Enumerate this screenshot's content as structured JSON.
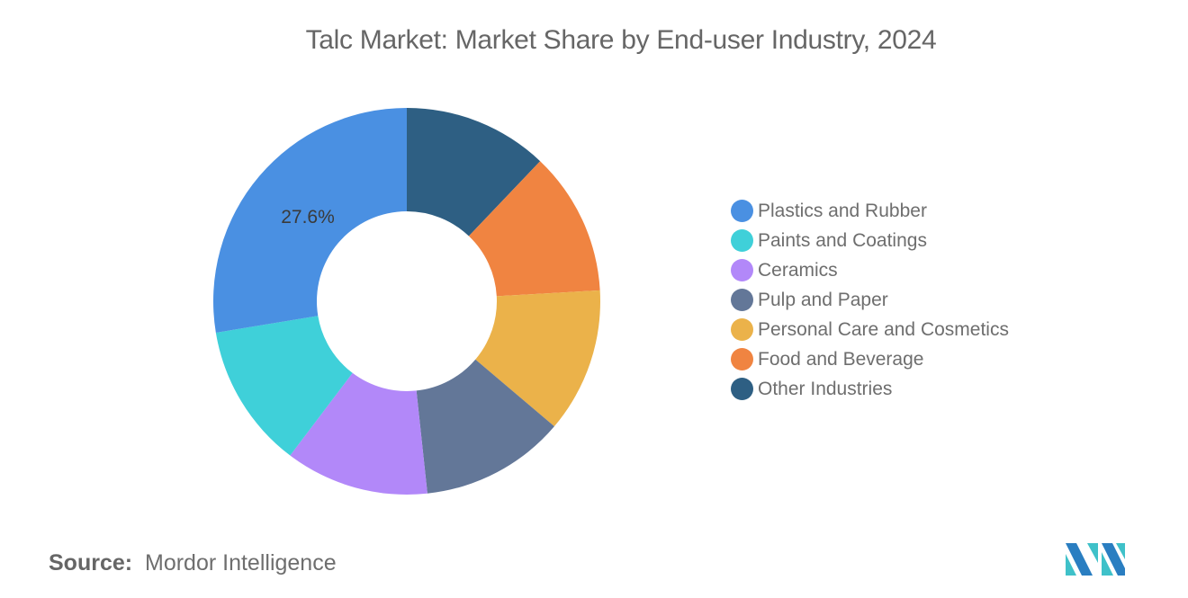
{
  "title": "Talc Market: Market Share by End-user Industry, 2024",
  "source_label": "Source:",
  "source_value": "Mordor Intelligence",
  "chart_data": {
    "type": "pie",
    "subtype": "donut",
    "title": "Talc Market: Market Share by End-user Industry, 2024",
    "start_angle": "12 o'clock, clockwise",
    "slices_in_draw_order": [
      {
        "label": "Other Industries",
        "value": 12.1,
        "color": "#2e5f83"
      },
      {
        "label": "Food and Beverage",
        "value": 12.0,
        "color": "#f08441"
      },
      {
        "label": "Personal Care and Cosmetics",
        "value": 12.1,
        "color": "#ebb24a"
      },
      {
        "label": "Pulp and Paper",
        "value": 12.1,
        "color": "#637798"
      },
      {
        "label": "Ceramics",
        "value": 12.0,
        "color": "#b288f9"
      },
      {
        "label": "Paints and Coatings",
        "value": 12.1,
        "color": "#3fd0d9"
      },
      {
        "label": "Plastics and Rubber",
        "value": 27.6,
        "color": "#4a90e2"
      }
    ],
    "data_labels": [
      {
        "label": "Plastics and Rubber",
        "text": "27.6%"
      }
    ],
    "legend": {
      "position": "right",
      "entries": [
        {
          "label": "Plastics and Rubber",
          "color": "#4a90e2"
        },
        {
          "label": "Paints and Coatings",
          "color": "#3fd0d9"
        },
        {
          "label": "Ceramics",
          "color": "#b288f9"
        },
        {
          "label": "Pulp and Paper",
          "color": "#637798"
        },
        {
          "label": "Personal Care and Cosmetics",
          "color": "#ebb24a"
        },
        {
          "label": "Food and Beverage",
          "color": "#f08441"
        },
        {
          "label": "Other Industries",
          "color": "#2e5f83"
        }
      ]
    }
  }
}
